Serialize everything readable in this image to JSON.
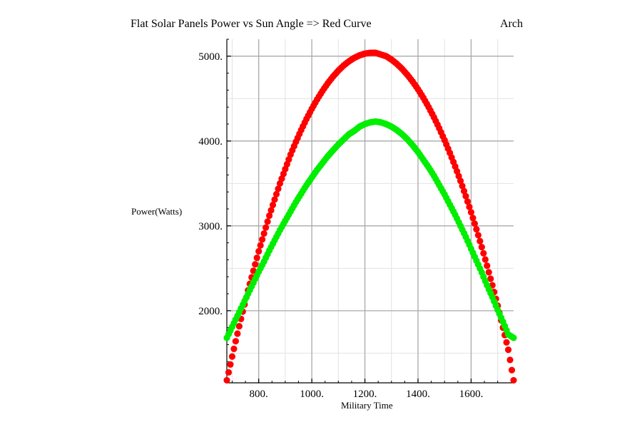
{
  "header": {
    "title": "Flat Solar Panels Power vs Sun Angle => Red Curve",
    "tag": "Arch"
  },
  "chart_data": {
    "type": "scatter",
    "title": "Flat Solar Panels Power vs Sun Angle => Red Curve",
    "xlabel": "Military Time",
    "ylabel": "Power(Watts)",
    "xlim": [
      680,
      1760
    ],
    "ylim": [
      1150,
      5200
    ],
    "x_ticks": [
      800,
      1000,
      1200,
      1400,
      1600
    ],
    "x_tick_labels": [
      "800.",
      "1000.",
      "1200.",
      "1400.",
      "1600."
    ],
    "y_ticks": [
      2000,
      3000,
      4000,
      5000
    ],
    "y_tick_labels": [
      "2000.",
      "3000.",
      "4000.",
      "5000."
    ],
    "grid": true,
    "series": [
      {
        "color": "#ff0000",
        "x": [
          680,
          700,
          720,
          740,
          760,
          780,
          800,
          820,
          840,
          860,
          880,
          900,
          920,
          940,
          960,
          980,
          1000,
          1020,
          1040,
          1060,
          1080,
          1100,
          1120,
          1140,
          1160,
          1180,
          1200,
          1220,
          1240,
          1260,
          1280,
          1300,
          1320,
          1340,
          1360,
          1380,
          1400,
          1420,
          1440,
          1460,
          1480,
          1500,
          1520,
          1540,
          1560,
          1580,
          1600,
          1620,
          1640,
          1660,
          1680,
          1700,
          1720,
          1740,
          1760
        ],
        "values": [
          1180,
          1460,
          1730,
          1990,
          2240,
          2470,
          2700,
          2910,
          3120,
          3310,
          3500,
          3670,
          3840,
          3990,
          4130,
          4260,
          4380,
          4490,
          4590,
          4680,
          4760,
          4830,
          4890,
          4940,
          4980,
          5010,
          5030,
          5040,
          5040,
          5020,
          5000,
          4960,
          4910,
          4850,
          4780,
          4700,
          4610,
          4510,
          4400,
          4280,
          4150,
          4010,
          3860,
          3700,
          3530,
          3350,
          3160,
          2960,
          2750,
          2530,
          2300,
          2060,
          1800,
          1540,
          1180
        ]
      },
      {
        "color": "#00ee00",
        "x": [
          680,
          700,
          720,
          740,
          760,
          780,
          800,
          820,
          840,
          860,
          880,
          900,
          920,
          940,
          960,
          980,
          1000,
          1020,
          1040,
          1060,
          1080,
          1100,
          1120,
          1140,
          1160,
          1180,
          1200,
          1220,
          1240,
          1260,
          1280,
          1300,
          1320,
          1340,
          1360,
          1380,
          1400,
          1420,
          1440,
          1460,
          1480,
          1500,
          1520,
          1540,
          1560,
          1580,
          1600,
          1620,
          1640,
          1660,
          1680,
          1700,
          1720,
          1740,
          1760
        ],
        "values": [
          1680,
          1810,
          1940,
          2070,
          2200,
          2330,
          2460,
          2580,
          2710,
          2830,
          2950,
          3060,
          3170,
          3280,
          3380,
          3480,
          3570,
          3660,
          3740,
          3820,
          3890,
          3960,
          4020,
          4080,
          4120,
          4170,
          4200,
          4220,
          4230,
          4220,
          4200,
          4170,
          4130,
          4080,
          4020,
          3950,
          3870,
          3780,
          3690,
          3590,
          3480,
          3370,
          3250,
          3130,
          3000,
          2870,
          2730,
          2590,
          2450,
          2300,
          2160,
          2010,
          1870,
          1720,
          1680
        ]
      }
    ]
  }
}
